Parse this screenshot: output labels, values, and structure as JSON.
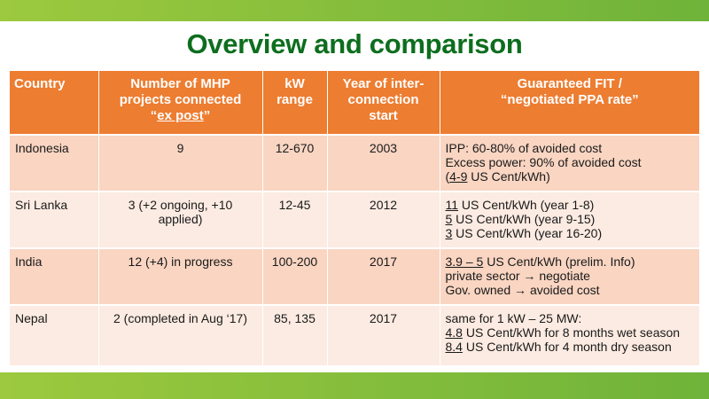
{
  "slide": {
    "title": "Overview and comparison"
  },
  "table": {
    "headers": {
      "country": "Country",
      "mhp_line1": "Number of MHP",
      "mhp_line2": "projects connected",
      "mhp_quote_open": "“",
      "mhp_expost": "ex post",
      "mhp_quote_close": "”",
      "kw_line1": "kW",
      "kw_line2": "range",
      "year_line1": "Year of inter-",
      "year_line2": "connection",
      "year_line3": "start",
      "fit_line1": "Guaranteed FIT /",
      "fit_line2": "“negotiated PPA rate”"
    },
    "rows": [
      {
        "country": "Indonesia",
        "mhp": "9",
        "kw": "12-670",
        "year": "2003",
        "fit": {
          "l1": "IPP: 60-80% of avoided cost",
          "l2": "Excess power: 90% of avoided cost",
          "l3_open": "(",
          "l3_u": "4-9",
          "l3_rest": " US Cent/kWh)"
        }
      },
      {
        "country": "Sri Lanka",
        "mhp_line1": "3 (+2 ongoing, +10",
        "mhp_line2": "applied)",
        "kw": "12-45",
        "year": "2012",
        "fit": {
          "l1_u": "11",
          "l1_rest": " US Cent/kWh (year 1-8)",
          "l2_u": "5",
          "l2_rest": " US Cent/kWh (year 9-15)",
          "l3_u": "3",
          "l3_rest": " US Cent/kWh (year 16-20)"
        }
      },
      {
        "country": "India",
        "mhp": "12 (+4) in progress",
        "kw": "100-200",
        "year": "2017",
        "fit": {
          "l1_u": "3.9 – 5",
          "l1_rest": " US Cent/kWh (prelim. Info)",
          "l2": "private sector → negotiate",
          "l3": "Gov. owned → avoided cost"
        }
      },
      {
        "country": "Nepal",
        "mhp": "2 (completed in Aug ‘17)",
        "kw": "85, 135",
        "year": "2017",
        "fit": {
          "l1": "same for 1 kW – 25 MW:",
          "l2_u": "4.8",
          "l2_rest": " US Cent/kWh for 8 months wet season",
          "l3_u": "8.4",
          "l3_rest": " US Cent/kWh for 4 month dry season"
        }
      }
    ]
  }
}
